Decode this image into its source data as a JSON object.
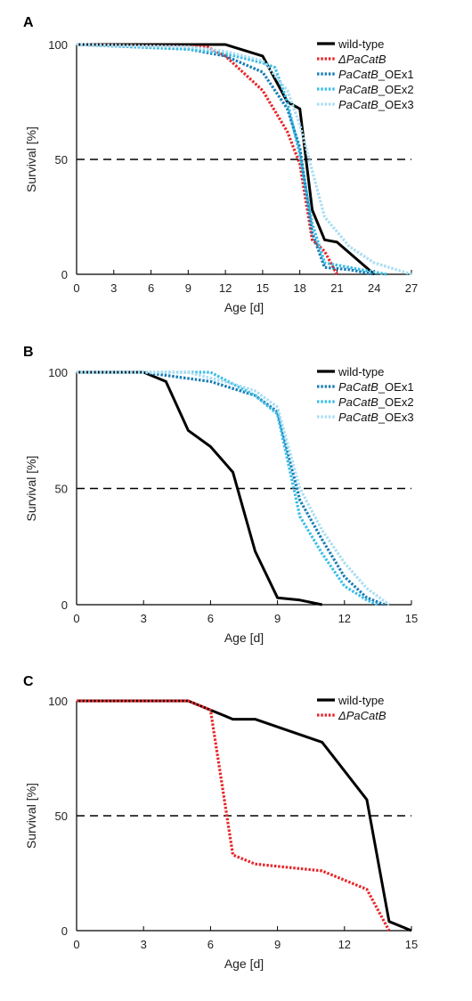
{
  "chart_data": [
    {
      "panel_label": "A",
      "type": "line",
      "xlabel": "Age [d]",
      "ylabel": "Survival [%]",
      "xlim": [
        0,
        27
      ],
      "ylim": [
        0,
        100
      ],
      "xticks": [
        0,
        3,
        6,
        9,
        12,
        15,
        18,
        21,
        24,
        27
      ],
      "yticks": [
        0,
        50,
        100
      ],
      "reference_line_y": 50,
      "legend_position": "top-right",
      "series": [
        {
          "name": "wild-type",
          "name_italic": "",
          "name_rest": "wild-type",
          "color": "#000000",
          "style": "solid",
          "points": [
            [
              0,
              100
            ],
            [
              12,
              100
            ],
            [
              15,
              95
            ],
            [
              17,
              75
            ],
            [
              18,
              72
            ],
            [
              19,
              28
            ],
            [
              20,
              15
            ],
            [
              21,
              14
            ],
            [
              24,
              0
            ]
          ]
        },
        {
          "name": "ΔPaCatB",
          "name_italic": "ΔPaCatB",
          "name_rest": "",
          "color": "#e8262a",
          "style": "dotted",
          "points": [
            [
              0,
              100
            ],
            [
              10.5,
              99
            ],
            [
              12,
              95
            ],
            [
              15,
              80
            ],
            [
              17,
              62
            ],
            [
              18,
              48
            ],
            [
              19,
              15
            ],
            [
              20,
              10
            ],
            [
              21,
              0
            ]
          ]
        },
        {
          "name": "PaCatB_OEx1",
          "name_italic": "PaCatB",
          "name_rest": "_OEx1",
          "color": "#1a7eb5",
          "style": "dotted",
          "points": [
            [
              0,
              100
            ],
            [
              9,
              98
            ],
            [
              12,
              95
            ],
            [
              15,
              88
            ],
            [
              17,
              72
            ],
            [
              18,
              55
            ],
            [
              19,
              18
            ],
            [
              20,
              3
            ],
            [
              22,
              2
            ],
            [
              24,
              0
            ]
          ]
        },
        {
          "name": "PaCatB_OEx2",
          "name_italic": "PaCatB",
          "name_rest": "_OEx2",
          "color": "#3bbde6",
          "style": "dotted",
          "points": [
            [
              0,
              100
            ],
            [
              9,
              98
            ],
            [
              12,
              96
            ],
            [
              15,
              92
            ],
            [
              16,
              90
            ],
            [
              17,
              75
            ],
            [
              18,
              52
            ],
            [
              19,
              22
            ],
            [
              20,
              5
            ],
            [
              22,
              3
            ],
            [
              25,
              0
            ]
          ]
        },
        {
          "name": "PaCatB_OEx3",
          "name_italic": "PaCatB",
          "name_rest": "_OEx3",
          "color": "#a8ddf3",
          "style": "dotted",
          "points": [
            [
              0,
              100
            ],
            [
              9,
              99
            ],
            [
              12,
              97
            ],
            [
              15,
              93
            ],
            [
              17,
              80
            ],
            [
              18,
              65
            ],
            [
              19,
              45
            ],
            [
              20,
              25
            ],
            [
              22,
              12
            ],
            [
              24,
              5
            ],
            [
              27,
              0
            ]
          ]
        }
      ]
    },
    {
      "panel_label": "B",
      "type": "line",
      "xlabel": "Age [d]",
      "ylabel": "Survival [%]",
      "xlim": [
        0,
        15
      ],
      "ylim": [
        0,
        100
      ],
      "xticks": [
        0,
        3,
        6,
        9,
        12,
        15
      ],
      "yticks": [
        0,
        50,
        100
      ],
      "reference_line_y": 50,
      "legend_position": "top-right",
      "series": [
        {
          "name": "wild-type",
          "name_italic": "",
          "name_rest": "wild-type",
          "color": "#000000",
          "style": "solid",
          "points": [
            [
              0,
              100
            ],
            [
              3,
              100
            ],
            [
              4,
              96
            ],
            [
              5,
              75
            ],
            [
              6,
              68
            ],
            [
              7,
              57
            ],
            [
              8,
              23
            ],
            [
              9,
              3
            ],
            [
              10,
              2
            ],
            [
              11,
              0
            ]
          ]
        },
        {
          "name": "PaCatB_OEx1",
          "name_italic": "PaCatB",
          "name_rest": "_OEx1",
          "color": "#1a7eb5",
          "style": "dotted",
          "points": [
            [
              0,
              100
            ],
            [
              3,
              100
            ],
            [
              6,
              96
            ],
            [
              8,
              90
            ],
            [
              9,
              83
            ],
            [
              10,
              45
            ],
            [
              11,
              28
            ],
            [
              12,
              12
            ],
            [
              13,
              3
            ],
            [
              13.8,
              0
            ]
          ]
        },
        {
          "name": "PaCatB_OEx2",
          "name_italic": "PaCatB",
          "name_rest": "_OEx2",
          "color": "#3bbde6",
          "style": "dotted",
          "points": [
            [
              0,
              100
            ],
            [
              3,
              100
            ],
            [
              6,
              100
            ],
            [
              7,
              95
            ],
            [
              8,
              90
            ],
            [
              9,
              82
            ],
            [
              10,
              38
            ],
            [
              11,
              22
            ],
            [
              12,
              8
            ],
            [
              13,
              2
            ],
            [
              13.5,
              0
            ]
          ]
        },
        {
          "name": "PaCatB_OEx3",
          "name_italic": "PaCatB",
          "name_rest": "_OEx3",
          "color": "#a8ddf3",
          "style": "dotted",
          "points": [
            [
              0,
              100
            ],
            [
              3,
              100
            ],
            [
              5,
              100
            ],
            [
              7,
              95
            ],
            [
              8,
              92
            ],
            [
              9,
              85
            ],
            [
              10,
              50
            ],
            [
              11,
              32
            ],
            [
              12,
              18
            ],
            [
              13,
              7
            ],
            [
              14,
              0
            ]
          ]
        }
      ]
    },
    {
      "panel_label": "C",
      "type": "line",
      "xlabel": "Age [d]",
      "ylabel": "Survival [%]",
      "xlim": [
        0,
        15
      ],
      "ylim": [
        0,
        100
      ],
      "xticks": [
        0,
        3,
        6,
        9,
        12,
        15
      ],
      "yticks": [
        0,
        50,
        100
      ],
      "reference_line_y": 50,
      "legend_position": "top-right",
      "series": [
        {
          "name": "wild-type",
          "name_italic": "",
          "name_rest": "wild-type",
          "color": "#000000",
          "style": "solid",
          "points": [
            [
              0,
              100
            ],
            [
              5,
              100
            ],
            [
              7,
              92
            ],
            [
              8,
              92
            ],
            [
              11,
              82
            ],
            [
              13,
              57
            ],
            [
              14,
              4
            ],
            [
              15,
              0
            ]
          ]
        },
        {
          "name": "ΔPaCatB",
          "name_italic": "ΔPaCatB",
          "name_rest": "",
          "color": "#e8262a",
          "style": "dotted",
          "points": [
            [
              0,
              100
            ],
            [
              5,
              100
            ],
            [
              6,
              96
            ],
            [
              7,
              33
            ],
            [
              8,
              29
            ],
            [
              11,
              26
            ],
            [
              13,
              18
            ],
            [
              14,
              0
            ]
          ]
        }
      ]
    }
  ]
}
